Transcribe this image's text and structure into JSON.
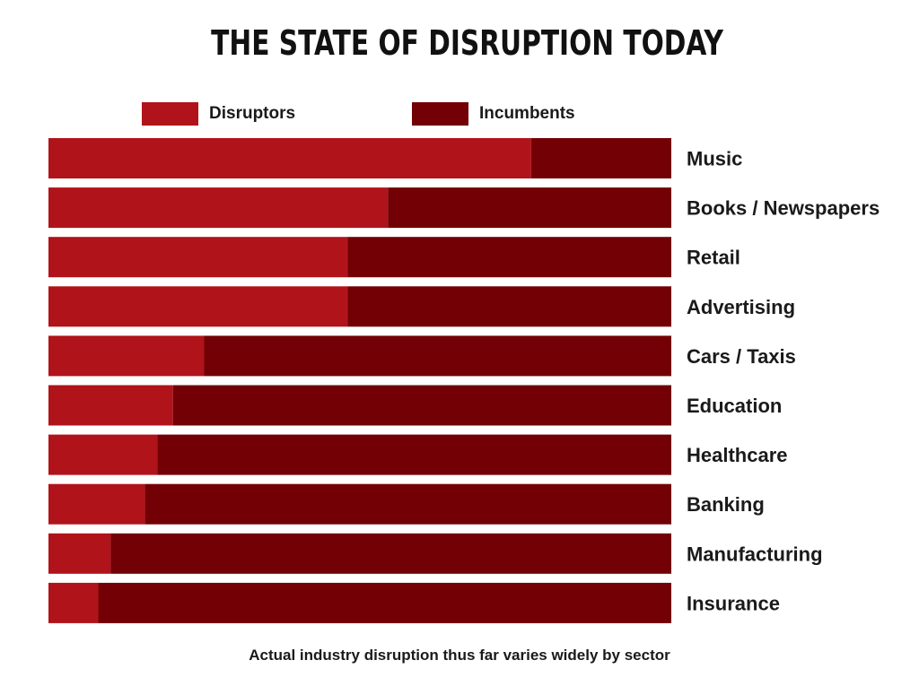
{
  "colors": {
    "disruptors": "#b0131a",
    "incumbents": "#720005"
  },
  "chart_data": {
    "type": "bar",
    "stacked": true,
    "orientation": "horizontal",
    "title": "THE STATE OF DISRUPTION TODAY",
    "footnote": "Actual industry disruption thus far varies widely by sector",
    "legend_position": "top",
    "value_unit": "percent",
    "xlim": [
      0,
      100
    ],
    "grid": false,
    "categories": [
      "Music",
      "Books / Newspapers",
      "Retail",
      "Advertising",
      "Cars / Taxis",
      "Education",
      "Healthcare",
      "Banking",
      "Manufacturing",
      "Insurance"
    ],
    "series": [
      {
        "name": "Disruptors",
        "values": [
          77.5,
          54.5,
          48,
          48,
          25,
          20,
          17.5,
          15.5,
          10,
          8
        ]
      },
      {
        "name": "Incumbents",
        "values": [
          22.5,
          45.5,
          52,
          52,
          75,
          80,
          82.5,
          84.5,
          90,
          92
        ]
      }
    ]
  }
}
